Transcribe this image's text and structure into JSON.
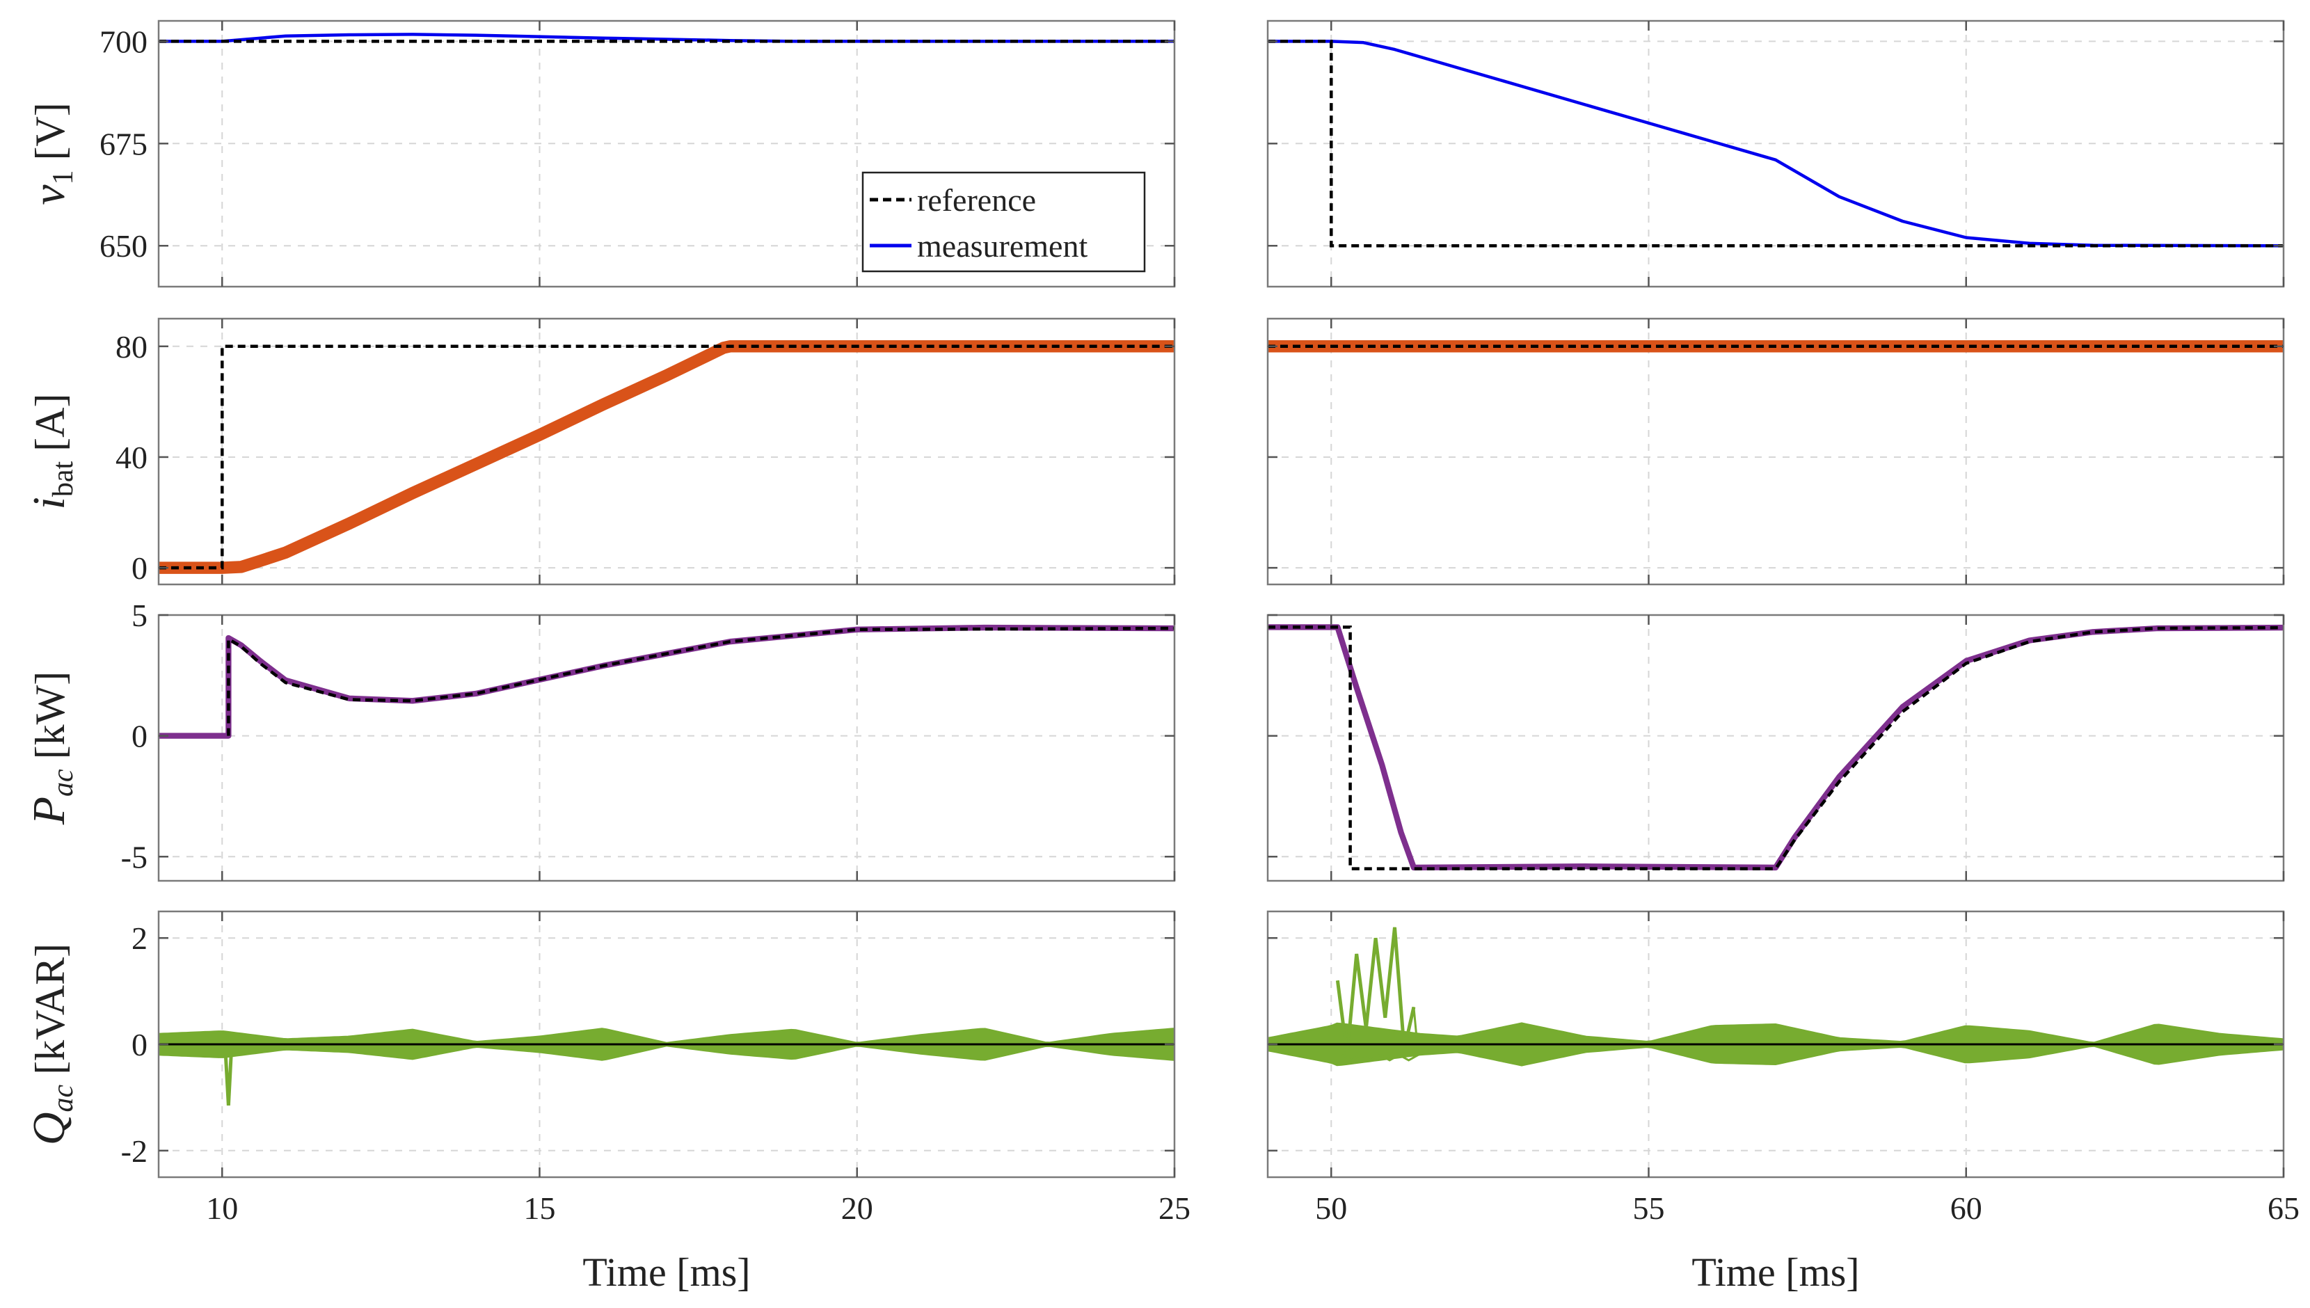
{
  "chart_data": {
    "type": "line",
    "title": "",
    "xlabel": "Time [ms]",
    "legend": {
      "placement": "inside-bottom-right of top-left panel",
      "entries": [
        {
          "label": "reference",
          "style": "dashed",
          "color": "#000000"
        },
        {
          "label": "measurement",
          "style": "solid",
          "color": "#0000ee"
        }
      ]
    },
    "columns": [
      {
        "xlim": [
          9,
          25
        ],
        "xticks": [
          10,
          15,
          20,
          25
        ]
      },
      {
        "xlim": [
          49,
          65
        ],
        "xticks": [
          50,
          55,
          60,
          65
        ]
      }
    ],
    "rows": [
      {
        "ylabel": "v1 [V]",
        "ylabel_main": "v",
        "ylabel_sub": "1",
        "ylabel_unit": "[V]",
        "ylim": [
          640,
          705
        ],
        "yticks": [
          650,
          675,
          700
        ],
        "color": "#0000ee",
        "band": 0,
        "panels": [
          {
            "reference": {
              "x": [
                9,
                10,
                25
              ],
              "y": [
                700,
                700,
                700
              ]
            },
            "measurement": {
              "x": [
                9,
                10,
                11,
                12,
                13,
                14,
                16,
                18,
                19,
                25
              ],
              "y": [
                700,
                700,
                701.3,
                701.6,
                701.7,
                701.5,
                700.8,
                700.2,
                700,
                700
              ]
            }
          },
          {
            "reference": {
              "x": [
                49,
                50,
                50,
                65
              ],
              "y": [
                700,
                700,
                650,
                650
              ]
            },
            "measurement": {
              "x": [
                49,
                50,
                50.5,
                51,
                52,
                53,
                54,
                55,
                56,
                57,
                58,
                59,
                60,
                61,
                62,
                65
              ],
              "y": [
                700,
                700,
                699.7,
                698,
                693.5,
                689,
                684.5,
                680,
                675.5,
                671,
                662,
                656,
                652,
                650.6,
                650.1,
                650
              ]
            }
          }
        ]
      },
      {
        "ylabel": "ibat [A]",
        "ylabel_main": "i",
        "ylabel_sub": "bat",
        "ylabel_unit": "[A]",
        "ylim": [
          -6,
          90
        ],
        "yticks": [
          0,
          40,
          80
        ],
        "color": "#d95319",
        "band": 2.2,
        "panels": [
          {
            "reference": {
              "x": [
                9,
                10,
                10,
                18,
                25
              ],
              "y": [
                0,
                0,
                80,
                80,
                80
              ]
            },
            "measurement": {
              "x": [
                9,
                10,
                10.3,
                10.6,
                11,
                12,
                13,
                14,
                15,
                16,
                17,
                17.9,
                18,
                25
              ],
              "y": [
                0,
                0,
                0.3,
                2.5,
                5.5,
                16,
                27,
                37.5,
                48,
                59,
                69.5,
                79.5,
                80,
                80
              ]
            }
          },
          {
            "reference": {
              "x": [
                49,
                65
              ],
              "y": [
                80,
                80
              ]
            },
            "measurement": {
              "x": [
                49,
                65
              ],
              "y": [
                80,
                80
              ]
            }
          }
        ]
      },
      {
        "ylabel": "Pac [kW]",
        "ylabel_main": "P",
        "ylabel_sub": "ac",
        "ylabel_unit": "[kW]",
        "ylim": [
          -6,
          5
        ],
        "yticks": [
          -5,
          0,
          5
        ],
        "color": "#7e2f8e",
        "band": 0.12,
        "panels": [
          {
            "reference": {
              "x": [
                10.1,
                10.1,
                10.3,
                10.6,
                11,
                12,
                13,
                14,
                16,
                18,
                20,
                25
              ],
              "y": [
                0,
                4.0,
                3.7,
                3.0,
                2.2,
                1.5,
                1.45,
                1.75,
                2.9,
                3.9,
                4.4,
                4.45
              ]
            },
            "measurement": {
              "x": [
                9,
                10.1,
                10.1,
                10.3,
                10.6,
                11,
                12,
                13,
                14,
                16,
                18,
                20,
                22,
                25
              ],
              "y": [
                0,
                0,
                4.05,
                3.75,
                3.1,
                2.3,
                1.55,
                1.45,
                1.75,
                2.9,
                3.9,
                4.4,
                4.48,
                4.45
              ]
            }
          },
          {
            "reference": {
              "x": [
                49,
                50.3,
                50.3,
                51.3,
                57,
                57.3,
                58,
                59,
                60,
                61,
                62,
                63,
                65
              ],
              "y": [
                4.5,
                4.5,
                -5.5,
                -5.5,
                -5.5,
                -4.3,
                -1.9,
                1.0,
                3.0,
                3.9,
                4.3,
                4.45,
                4.48
              ]
            },
            "measurement": {
              "x": [
                49,
                50.1,
                50.4,
                50.8,
                51.1,
                51.3,
                54,
                57,
                57.3,
                58,
                59,
                60,
                61,
                62,
                63,
                65
              ],
              "y": [
                4.5,
                4.5,
                2.0,
                -1.2,
                -4.0,
                -5.45,
                -5.4,
                -5.45,
                -4.2,
                -1.7,
                1.2,
                3.1,
                3.95,
                4.3,
                4.45,
                4.48
              ]
            }
          }
        ]
      },
      {
        "ylabel": "Qac [kVAR]",
        "ylabel_main": "Q",
        "ylabel_sub": "ac",
        "ylabel_unit": "[kVAR]",
        "ylim": [
          -2.5,
          2.5
        ],
        "yticks": [
          -2,
          0,
          2
        ],
        "color": "#77ac30",
        "band": 0,
        "panels": [
          {
            "reference": {
              "x": [
                9,
                25
              ],
              "y": [
                0,
                0
              ]
            },
            "measurement": {
              "envelope_x": [
                9,
                10,
                11,
                12,
                13,
                14,
                15,
                16,
                17,
                18,
                19,
                20,
                21,
                22,
                23,
                24,
                25
              ],
              "envelope_amp": [
                0.2,
                0.25,
                0.1,
                0.15,
                0.28,
                0.05,
                0.15,
                0.3,
                0.03,
                0.18,
                0.28,
                0.03,
                0.18,
                0.3,
                0.03,
                0.2,
                0.3
              ],
              "spike": {
                "x": 10.1,
                "y": -1.15
              }
            }
          },
          {
            "reference": {
              "x": [
                49,
                65
              ],
              "y": [
                0,
                0
              ]
            },
            "measurement": {
              "envelope_x": [
                49,
                50,
                50.1,
                51.4,
                52,
                53,
                54,
                55,
                56,
                57,
                58,
                59,
                60,
                61,
                62,
                63,
                64,
                65
              ],
              "envelope_amp": [
                0.12,
                0.35,
                0.4,
                0.2,
                0.15,
                0.4,
                0.15,
                0.05,
                0.35,
                0.38,
                0.12,
                0.05,
                0.35,
                0.25,
                0.03,
                0.38,
                0.2,
                0.1
              ],
              "burst": {
                "x": [
                  50.1,
                  50.25,
                  50.4,
                  50.55,
                  50.7,
                  50.85,
                  51.0,
                  51.15,
                  51.3
                ],
                "y": [
                  1.2,
                  -0.2,
                  1.7,
                  0.3,
                  2.0,
                  0.5,
                  2.2,
                  -0.1,
                  0.7
                ]
              }
            }
          }
        ]
      }
    ]
  }
}
